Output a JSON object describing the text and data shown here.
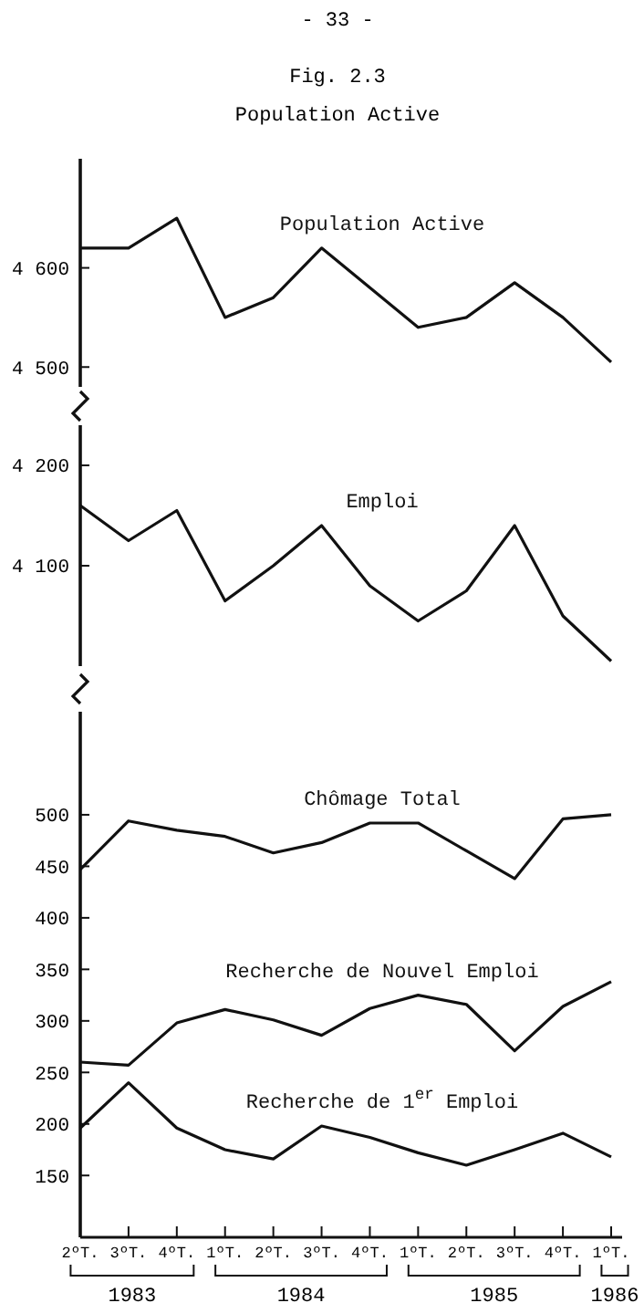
{
  "chart_data": [
    {
      "type": "line",
      "title": "Fig. 2.3",
      "subtitle": "Population Active",
      "annotations": [
        "- 33 -"
      ],
      "ylim": [
        4480,
        4710
      ],
      "yticks": [
        {
          "value": 4500,
          "label": "4 500"
        },
        {
          "value": 4600,
          "label": "4 600"
        }
      ],
      "tick_labels": "y",
      "grid": false,
      "marker": "none",
      "line_style": "solid",
      "series": [
        {
          "name": "Population Active",
          "color": "#111111",
          "values": [
            4620,
            4620,
            4650,
            4550,
            4570,
            4620,
            4580,
            4540,
            4550,
            4585,
            4550,
            4505
          ]
        }
      ]
    },
    {
      "type": "line",
      "ylim": [
        4000,
        4240
      ],
      "yticks": [
        {
          "value": 4100,
          "label": "4 100"
        },
        {
          "value": 4200,
          "label": "4 200"
        }
      ],
      "tick_labels": "y",
      "grid": false,
      "marker": "none",
      "line_style": "solid",
      "series": [
        {
          "name": "Emploi",
          "color": "#111111",
          "values": [
            4160,
            4125,
            4155,
            4065,
            4100,
            4140,
            4080,
            4045,
            4075,
            4140,
            4050,
            4005
          ]
        }
      ]
    },
    {
      "type": "line",
      "annotations": [
        "1983",
        "1984",
        "1985",
        "1986"
      ],
      "categories": [
        "2ºT.",
        "3ºT.",
        "4ºT.",
        "1ºT.",
        "2ºT.",
        "3ºT.",
        "4ºT.",
        "1ºT.",
        "2ºT.",
        "3ºT.",
        "4ºT.",
        "1ºT."
      ],
      "ylim": [
        90,
        600
      ],
      "yticks": [
        150,
        200,
        250,
        300,
        350,
        400,
        450,
        500
      ],
      "grid": false,
      "marker": "none",
      "line_style": "solid",
      "series": [
        {
          "name": "Chômage Total",
          "color": "#111111",
          "values": [
            447,
            494,
            485,
            479,
            463,
            473,
            492,
            492,
            465,
            438,
            496,
            500
          ]
        },
        {
          "name": "Recherche de Nouvel Emploi",
          "color": "#111111",
          "values": [
            260,
            257,
            298,
            311,
            301,
            286,
            312,
            325,
            316,
            271,
            314,
            338
          ]
        },
        {
          "name": "Recherche de 1$^{er}$ Emploi",
          "color": "#111111",
          "values": [
            196,
            240,
            196,
            175,
            166,
            198,
            187,
            172,
            160,
            175,
            191,
            168
          ]
        }
      ]
    }
  ]
}
